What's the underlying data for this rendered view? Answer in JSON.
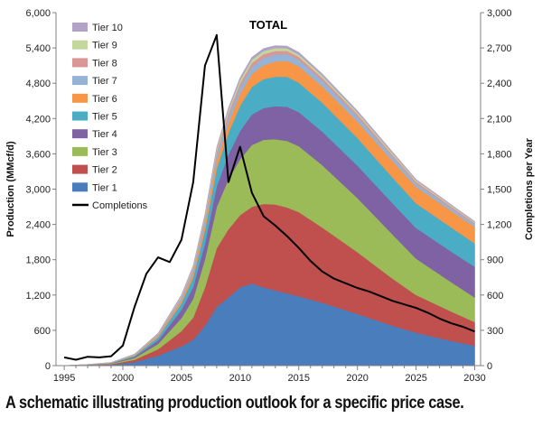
{
  "caption": "A schematic illustrating production outlook for a specific price case.",
  "chart_data": {
    "type": "area",
    "title": "TOTAL",
    "ylabel": "Production (MMcf/d)",
    "y2label": "Completions per Year",
    "xlim": [
      1994.3,
      2030.5
    ],
    "ylim": [
      0,
      6000
    ],
    "y2lim": [
      0,
      3000
    ],
    "x_ticks": [
      1995,
      2000,
      2005,
      2010,
      2015,
      2020,
      2025,
      2030
    ],
    "y_ticks": [
      0,
      600,
      1200,
      1800,
      2400,
      3000,
      3600,
      4200,
      4800,
      5400,
      6000
    ],
    "y2_ticks": [
      0,
      300,
      600,
      900,
      1200,
      1500,
      1800,
      2100,
      2400,
      2700,
      3000
    ],
    "x_tick_labels": [
      "1995",
      "2000",
      "2005",
      "2010",
      "2015",
      "2020",
      "2025",
      "2030"
    ],
    "y_tick_labels": [
      "0",
      "600",
      "1,200",
      "1,800",
      "2,400",
      "3,000",
      "3,600",
      "4,200",
      "4,800",
      "5,400",
      "6,000"
    ],
    "y2_tick_labels": [
      "0",
      "300",
      "600",
      "900",
      "1,200",
      "1,500",
      "1,800",
      "2,100",
      "2,400",
      "2,700",
      "3,000"
    ],
    "grid": false,
    "legend_position": "top-left",
    "x": [
      1995,
      1997,
      1999,
      2001,
      2003,
      2005,
      2006,
      2007,
      2008,
      2009,
      2010,
      2011,
      2012,
      2013,
      2014,
      2015,
      2017,
      2020,
      2023,
      2025,
      2028,
      2030
    ],
    "stacked_series": [
      {
        "name": "Tier 1",
        "color": "#4a7dbb",
        "values": [
          0,
          5,
          15,
          60,
          170,
          330,
          440,
          680,
          1000,
          1160,
          1330,
          1400,
          1330,
          1280,
          1230,
          1180,
          1070,
          880,
          680,
          560,
          420,
          340
        ]
      },
      {
        "name": "Tier 2",
        "color": "#c0504d",
        "values": [
          0,
          5,
          10,
          40,
          110,
          260,
          380,
          650,
          1000,
          1160,
          1230,
          1300,
          1420,
          1460,
          1460,
          1430,
          1280,
          1050,
          800,
          640,
          500,
          400
        ]
      },
      {
        "name": "Tier 3",
        "color": "#9bbb59",
        "values": [
          0,
          3,
          8,
          30,
          90,
          220,
          320,
          480,
          700,
          850,
          950,
          1050,
          1090,
          1110,
          1130,
          1120,
          1060,
          920,
          750,
          620,
          500,
          420
        ]
      },
      {
        "name": "Tier 4",
        "color": "#7f62a3",
        "values": [
          0,
          2,
          6,
          20,
          60,
          140,
          200,
          270,
          350,
          420,
          480,
          520,
          540,
          560,
          580,
          580,
          570,
          550,
          530,
          520,
          520,
          520
        ]
      },
      {
        "name": "Tier 5",
        "color": "#4aacc5",
        "values": [
          0,
          2,
          5,
          18,
          50,
          110,
          160,
          220,
          300,
          370,
          430,
          470,
          490,
          500,
          510,
          500,
          490,
          470,
          440,
          420,
          410,
          400
        ]
      },
      {
        "name": "Tier 6",
        "color": "#f79646",
        "values": [
          0,
          1,
          3,
          10,
          25,
          50,
          70,
          100,
          140,
          170,
          200,
          220,
          240,
          260,
          270,
          280,
          280,
          280,
          280,
          280,
          280,
          280
        ]
      },
      {
        "name": "Tier 7",
        "color": "#95b3d7",
        "values": [
          0,
          1,
          2,
          7,
          18,
          35,
          50,
          70,
          90,
          105,
          115,
          120,
          120,
          120,
          115,
          110,
          100,
          85,
          70,
          60,
          50,
          45
        ]
      },
      {
        "name": "Tier 8",
        "color": "#d99694",
        "values": [
          0,
          1,
          2,
          5,
          12,
          25,
          35,
          45,
          55,
          60,
          65,
          65,
          65,
          60,
          55,
          50,
          45,
          40,
          35,
          30,
          25,
          20
        ]
      },
      {
        "name": "Tier 9",
        "color": "#c3d69b",
        "values": [
          0,
          0,
          1,
          3,
          8,
          18,
          25,
          35,
          45,
          50,
          55,
          55,
          55,
          50,
          45,
          40,
          35,
          30,
          25,
          20,
          18,
          15
        ]
      },
      {
        "name": "Tier 10",
        "color": "#b3a2c7",
        "values": [
          0,
          0,
          1,
          3,
          8,
          15,
          20,
          25,
          30,
          35,
          40,
          40,
          40,
          40,
          35,
          35,
          30,
          25,
          20,
          15,
          12,
          10
        ]
      }
    ],
    "line_series": {
      "name": "Completions",
      "color": "#000000",
      "axis": "right",
      "x": [
        1995,
        1996,
        1997,
        1998,
        1999,
        2000,
        2001,
        2002,
        2003,
        2004,
        2005,
        2006,
        2007,
        2008,
        2009,
        2010,
        2011,
        2012,
        2013,
        2014,
        2015,
        2016,
        2017,
        2018,
        2019,
        2020,
        2021,
        2022,
        2023,
        2024,
        2025,
        2026,
        2027,
        2028,
        2029,
        2030
      ],
      "values": [
        70,
        50,
        75,
        70,
        80,
        170,
        500,
        780,
        920,
        880,
        1070,
        1560,
        2550,
        2810,
        1560,
        1860,
        1470,
        1270,
        1190,
        1100,
        1000,
        890,
        800,
        740,
        700,
        660,
        630,
        590,
        550,
        520,
        490,
        450,
        400,
        360,
        330,
        290
      ]
    }
  }
}
